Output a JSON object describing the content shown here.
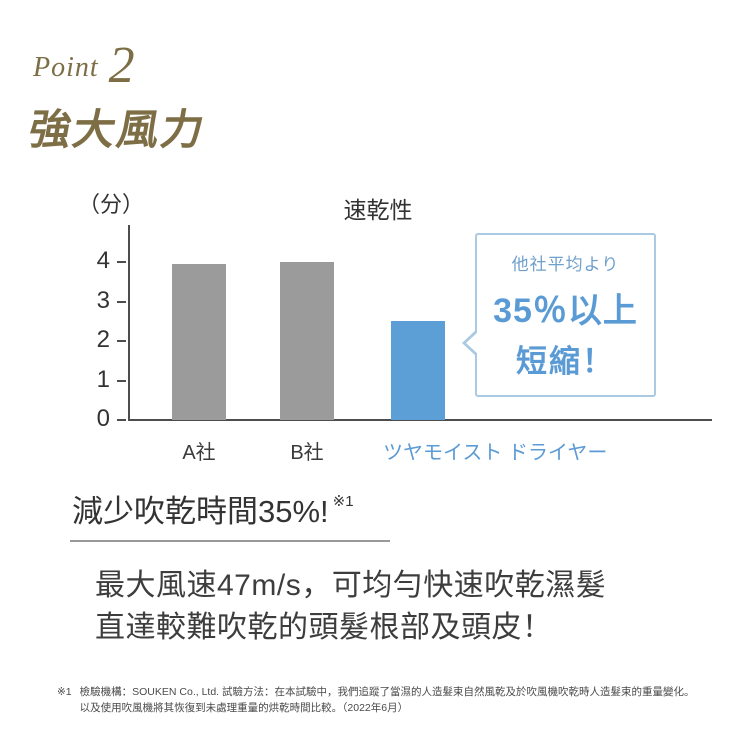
{
  "header": {
    "point_word": "Point",
    "point_number": "2",
    "title": "強大風力",
    "accent_color": "#7d6e45"
  },
  "chart_data": {
    "type": "bar",
    "title": "速乾性",
    "ylabel": "（分）",
    "xlabel": "",
    "categories": [
      "A社",
      "B社",
      "ツヤモイスト ドライヤー"
    ],
    "values": [
      3.95,
      4.0,
      2.5
    ],
    "bar_colors": [
      "#9b9b9b",
      "#9b9b9b",
      "#5b9fd6"
    ],
    "label_colors": [
      "#3a3a3a",
      "#3a3a3a",
      "#5b9bd5"
    ],
    "yticks": [
      0,
      1,
      2,
      3,
      4
    ],
    "ylim": [
      0,
      4.9
    ],
    "grid": false,
    "legend": false
  },
  "callout": {
    "line1": "他社平均より",
    "line2": "35％以上",
    "line3": "短縮！",
    "text_color": "#5b9bd5",
    "border_color": "#aac9e2"
  },
  "sub_heading": {
    "text": "減少吹乾時間35%!",
    "sup": "※1"
  },
  "body": {
    "line1": "最大風速47m/s，可均勻快速吹乾濕髮",
    "line2": "直達較難吹乾的頭髮根部及頭皮！"
  },
  "footnote": {
    "marker": "※1",
    "line1": "檢驗機構：SOUKEN Co., Ltd. 試驗方法：在本試驗中，我們追蹤了當濕的人造髮束自然風乾及於吹風機吹乾時人造髮束的重量變化。",
    "line2": "以及使用吹風機將其恢復到未處理重量的烘乾時間比較。（2022年6月）"
  }
}
